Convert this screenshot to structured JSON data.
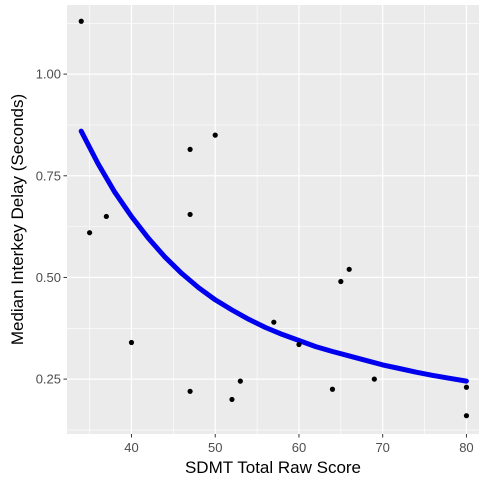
{
  "chart_data": {
    "type": "scatter",
    "title": "",
    "xlabel": "SDMT Total Raw Score",
    "ylabel": "Median Interkey Delay (Seconds)",
    "xlim": [
      32.3,
      81.5
    ],
    "ylim": [
      0.115,
      1.17
    ],
    "x_ticks": [
      40,
      50,
      60,
      70,
      80
    ],
    "x_tick_labels": [
      "40",
      "50",
      "60",
      "70",
      "80"
    ],
    "y_ticks": [
      0.25,
      0.5,
      0.75,
      1.0
    ],
    "y_tick_labels": [
      "0.25",
      "0.50",
      "0.75",
      "1.00"
    ],
    "grid": true,
    "panel_color": "#ebebeb",
    "grid_color": "#ffffff",
    "point_color": "#000000",
    "fit_color": "#0000ee",
    "points": [
      {
        "x": 34,
        "y": 1.13
      },
      {
        "x": 35,
        "y": 0.61
      },
      {
        "x": 37,
        "y": 0.65
      },
      {
        "x": 40,
        "y": 0.34
      },
      {
        "x": 47,
        "y": 0.815
      },
      {
        "x": 47,
        "y": 0.655
      },
      {
        "x": 47,
        "y": 0.22
      },
      {
        "x": 50,
        "y": 0.85
      },
      {
        "x": 52,
        "y": 0.2
      },
      {
        "x": 53,
        "y": 0.245
      },
      {
        "x": 57,
        "y": 0.39
      },
      {
        "x": 60,
        "y": 0.335
      },
      {
        "x": 64,
        "y": 0.225
      },
      {
        "x": 65,
        "y": 0.49
      },
      {
        "x": 66,
        "y": 0.52
      },
      {
        "x": 69,
        "y": 0.25
      },
      {
        "x": 80,
        "y": 0.23
      },
      {
        "x": 80,
        "y": 0.16
      }
    ],
    "fit_line": {
      "x": [
        34,
        36,
        38,
        40,
        42,
        44,
        46,
        48,
        50,
        52,
        54,
        56,
        58,
        60,
        62,
        64,
        66,
        68,
        70,
        72,
        74,
        76,
        78,
        80
      ],
      "y": [
        0.86,
        0.78,
        0.71,
        0.65,
        0.597,
        0.55,
        0.51,
        0.475,
        0.445,
        0.42,
        0.397,
        0.377,
        0.36,
        0.345,
        0.33,
        0.318,
        0.307,
        0.296,
        0.285,
        0.276,
        0.267,
        0.259,
        0.252,
        0.245
      ]
    }
  }
}
